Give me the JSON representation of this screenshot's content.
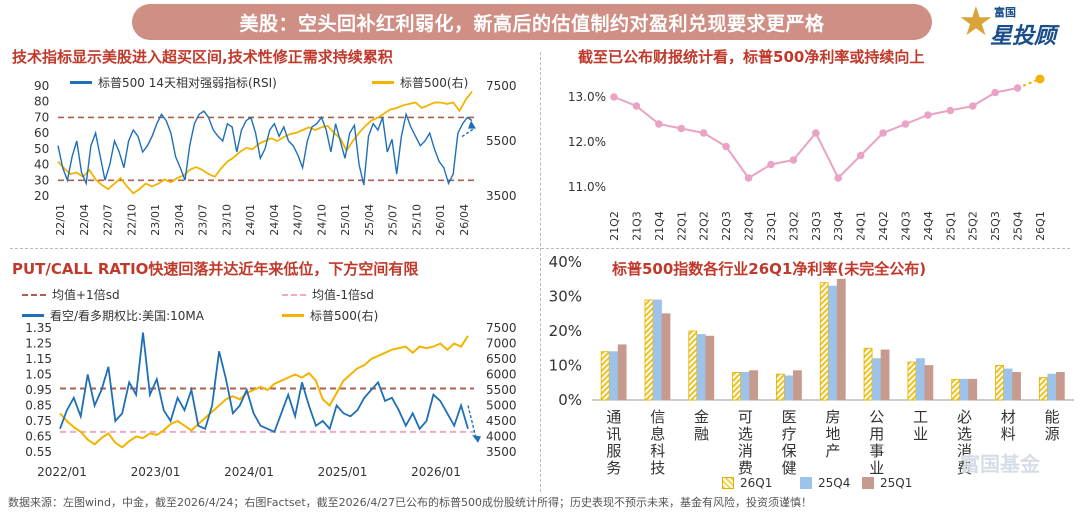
{
  "banner": {
    "title": "美股：空头回补红利弱化，新高后的估值制约对盈利兑现要求更严格"
  },
  "logo": {
    "line1": "富国",
    "line2": "星投顾"
  },
  "footer": "数据来源：左图wind，中金，截至2026/4/24；右图Factset，截至2026/4/27已公布的标普500成份股统计所得；历史表现不预示未来，基金有风险，投资须谨慎！",
  "watermark": "富国基金",
  "colors": {
    "blue": "#1f6fb8",
    "yellow": "#f2b400",
    "red_dash": "#a9604f",
    "pink_dash": "#f1a9c6",
    "pink_line": "#eaa3c4",
    "title": "#c0392b"
  },
  "chart_data": [
    {
      "id": "rsi",
      "type": "line",
      "title": "技术指标显示美股进入超买区间,技术性修正需求持续累积",
      "legend": [
        "标普500 14天相对强弱指标(RSI)",
        "标普500(右)"
      ],
      "x_ticks": [
        "22/01",
        "22/04",
        "22/07",
        "22/10",
        "23/01",
        "23/04",
        "23/07",
        "23/10",
        "24/01",
        "24/04",
        "24/07",
        "24/10",
        "25/01",
        "25/04",
        "25/07",
        "25/10",
        "26/01",
        "26/04"
      ],
      "ylim_left": [
        20,
        90
      ],
      "yticks_left": [
        20,
        30,
        40,
        50,
        60,
        70,
        80,
        90
      ],
      "ylim_right": [
        3500,
        7500
      ],
      "yticks_right": [
        3500,
        5500,
        7500
      ],
      "ref_lines": [
        70,
        30
      ],
      "series": [
        {
          "name": "标普500 14天相对强弱指标(RSI)",
          "axis": "left",
          "values": [
            52,
            38,
            30,
            45,
            55,
            35,
            28,
            52,
            60,
            45,
            30,
            40,
            55,
            48,
            38,
            55,
            62,
            58,
            48,
            52,
            58,
            66,
            72,
            68,
            60,
            45,
            38,
            30,
            52,
            66,
            72,
            74,
            70,
            62,
            58,
            55,
            66,
            64,
            48,
            62,
            68,
            70,
            60,
            44,
            50,
            62,
            66,
            58,
            64,
            55,
            52,
            46,
            38,
            55,
            64,
            66,
            70,
            62,
            48,
            66,
            55,
            44,
            60,
            65,
            40,
            27,
            58,
            66,
            62,
            70,
            48,
            56,
            34,
            58,
            72,
            64,
            58,
            52,
            55,
            60,
            50,
            42,
            38,
            28,
            34,
            60,
            66,
            70,
            68
          ]
        },
        {
          "name": "标普500(右)",
          "axis": "right",
          "values": [
            4750,
            4500,
            4300,
            4350,
            4200,
            4450,
            4100,
            3900,
            3750,
            3950,
            4150,
            3850,
            3600,
            3750,
            3950,
            3850,
            3950,
            4100,
            4000,
            4150,
            4250,
            4450,
            4550,
            4450,
            4300,
            4200,
            4500,
            4750,
            4900,
            5100,
            5250,
            5200,
            5400,
            5500,
            5600,
            5500,
            5650,
            5750,
            5800,
            5900,
            6000,
            5900,
            6000,
            6050,
            5800,
            5600,
            5150,
            5500,
            5800,
            6050,
            6250,
            6350,
            6500,
            6650,
            6700,
            6800,
            6850,
            6900,
            6700,
            6800,
            6900,
            6900,
            6850,
            6900,
            6600,
            7000,
            7300
          ]
        }
      ]
    },
    {
      "id": "net_margin",
      "type": "line",
      "title": "截至已公布财报统计看，标普500净利率或持续向上",
      "categories": [
        "21Q2",
        "21Q3",
        "21Q4",
        "22Q1",
        "22Q2",
        "22Q3",
        "22Q4",
        "23Q1",
        "23Q2",
        "23Q3",
        "23Q4",
        "24Q1",
        "24Q2",
        "24Q3",
        "24Q4",
        "25Q1",
        "25Q2",
        "25Q3",
        "25Q4",
        "26Q1"
      ],
      "values": [
        13.0,
        12.8,
        12.4,
        12.3,
        12.2,
        11.9,
        11.2,
        11.5,
        11.6,
        12.2,
        11.2,
        11.7,
        12.2,
        12.4,
        12.6,
        12.7,
        12.8,
        13.1,
        13.2,
        13.4
      ],
      "yticks": [
        "11.0%",
        "12.0%",
        "13.0%"
      ],
      "ylim": [
        10.8,
        13.6
      ]
    },
    {
      "id": "put_call",
      "type": "line",
      "title": "PUT/CALL RATIO快速回落并达近年来低位，下方空间有限",
      "legend": [
        "均值+1倍sd",
        "均值-1倍sd",
        "看空/看多期权比:美国:10MA",
        "标普500(右)"
      ],
      "x_ticks": [
        "2022/01",
        "2023/01",
        "2024/01",
        "2025/01",
        "2026/01"
      ],
      "ylim_left": [
        0.55,
        1.35
      ],
      "yticks_left": [
        "0.55",
        "0.65",
        "0.75",
        "0.85",
        "0.95",
        "1.05",
        "1.15",
        "1.25",
        "1.35"
      ],
      "ylim_right": [
        3500,
        7500
      ],
      "yticks_right": [
        "3500",
        "4000",
        "4500",
        "5000",
        "5500",
        "6000",
        "6500",
        "7000",
        "7500"
      ],
      "mean_plus_sd": 0.96,
      "mean_minus_sd": 0.68,
      "series": [
        {
          "name": "看空/看多期权比:美国:10MA",
          "axis": "left",
          "values": [
            0.7,
            0.82,
            0.9,
            0.78,
            1.05,
            0.85,
            0.95,
            1.1,
            0.75,
            0.8,
            1.0,
            0.92,
            1.32,
            0.92,
            1.02,
            0.82,
            0.75,
            0.9,
            0.82,
            0.95,
            0.72,
            0.7,
            0.85,
            1.2,
            1.02,
            0.8,
            0.85,
            0.95,
            0.8,
            0.72,
            0.7,
            0.68,
            0.8,
            0.92,
            0.78,
            1.0,
            0.85,
            0.72,
            0.75,
            0.7,
            0.85,
            0.8,
            0.78,
            0.82,
            0.9,
            0.95,
            1.0,
            0.88,
            0.9,
            0.82,
            0.72,
            0.8,
            0.7,
            0.75,
            0.92,
            0.88,
            0.8,
            0.72,
            0.85,
            0.7
          ]
        },
        {
          "name": "标普500(右)",
          "axis": "right",
          "values": [
            4750,
            4500,
            4300,
            4150,
            3900,
            3750,
            3950,
            4100,
            3800,
            3650,
            3850,
            4000,
            3950,
            4100,
            4050,
            4200,
            4400,
            4500,
            4350,
            4200,
            4400,
            4600,
            4800,
            5000,
            5200,
            5300,
            5200,
            5400,
            5500,
            5600,
            5500,
            5700,
            5800,
            5900,
            6000,
            5900,
            6050,
            5800,
            5200,
            5000,
            5400,
            5800,
            6000,
            6200,
            6300,
            6500,
            6600,
            6700,
            6800,
            6850,
            6900,
            6700,
            6900,
            6850,
            6900,
            7000,
            6800,
            7000,
            6900,
            7250
          ]
        }
      ]
    },
    {
      "id": "sector_margin",
      "type": "bar",
      "title": "标普500指数各行业26Q1净利率(未完全公布)",
      "categories": [
        "通讯服务",
        "信息科技",
        "金融",
        "可选消费",
        "医疗保健",
        "房地产",
        "公用事业",
        "工业",
        "必选消费",
        "材料",
        "能源"
      ],
      "yticks": [
        "0%",
        "10%",
        "20%",
        "30%",
        "40%"
      ],
      "ylim": [
        0,
        40
      ],
      "series": [
        {
          "name": "26Q1",
          "values": [
            14,
            29,
            20,
            8,
            7.5,
            34,
            15,
            11,
            6,
            10,
            6.5
          ]
        },
        {
          "name": "25Q4",
          "values": [
            14,
            29,
            19,
            8,
            7,
            33,
            12,
            12,
            6,
            9,
            7.5
          ]
        },
        {
          "name": "25Q1",
          "values": [
            16,
            25,
            18.5,
            8.5,
            8.5,
            35,
            14.5,
            10,
            6,
            8,
            8
          ]
        }
      ]
    }
  ]
}
